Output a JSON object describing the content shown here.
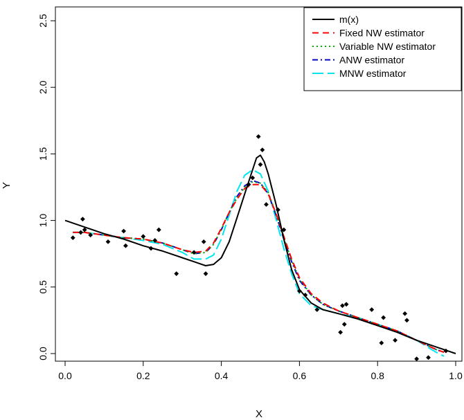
{
  "chart_data": {
    "type": "scatter",
    "xlabel": "X",
    "ylabel": "Y",
    "xlim": [
      0,
      1
    ],
    "ylim": [
      0,
      2.5
    ],
    "xticks": [
      "0.0",
      "0.2",
      "0.4",
      "0.6",
      "0.8",
      "1.0"
    ],
    "yticks": [
      "0.0",
      "0.5",
      "1.0",
      "1.5",
      "2.0",
      "2.5"
    ],
    "legend_position": "top-right",
    "points": {
      "name": "observations",
      "x": [
        0.02,
        0.04,
        0.045,
        0.05,
        0.065,
        0.11,
        0.15,
        0.155,
        0.2,
        0.22,
        0.23,
        0.24,
        0.285,
        0.33,
        0.355,
        0.36,
        0.47,
        0.48,
        0.495,
        0.5,
        0.505,
        0.515,
        0.545,
        0.56,
        0.6,
        0.615,
        0.645,
        0.705,
        0.71,
        0.715,
        0.72,
        0.785,
        0.81,
        0.815,
        0.845,
        0.87,
        0.875,
        0.9,
        0.93,
        0.975
      ],
      "y": [
        0.87,
        0.91,
        1.01,
        0.93,
        0.89,
        0.84,
        0.92,
        0.81,
        0.88,
        0.79,
        0.85,
        0.93,
        0.6,
        0.76,
        0.84,
        0.6,
        1.27,
        1.32,
        1.63,
        1.42,
        1.53,
        1.12,
        1.08,
        0.93,
        0.47,
        0.44,
        0.33,
        0.16,
        0.36,
        0.22,
        0.37,
        0.33,
        0.08,
        0.27,
        0.1,
        0.3,
        0.25,
        -0.04,
        -0.03,
        0.02
      ]
    },
    "series": [
      {
        "name": "m(x)",
        "color": "#000000",
        "dash": "solid",
        "x": [
          0.0,
          0.05,
          0.1,
          0.15,
          0.2,
          0.25,
          0.3,
          0.33,
          0.36,
          0.38,
          0.4,
          0.42,
          0.44,
          0.46,
          0.48,
          0.49,
          0.5,
          0.51,
          0.52,
          0.54,
          0.56,
          0.58,
          0.6,
          0.63,
          0.66,
          0.7,
          0.75,
          0.8,
          0.85,
          0.9,
          0.95,
          1.0
        ],
        "y": [
          1.0,
          0.95,
          0.9,
          0.86,
          0.81,
          0.77,
          0.72,
          0.69,
          0.66,
          0.67,
          0.72,
          0.84,
          1.02,
          1.2,
          1.38,
          1.47,
          1.49,
          1.44,
          1.35,
          1.12,
          0.86,
          0.63,
          0.48,
          0.38,
          0.33,
          0.3,
          0.26,
          0.21,
          0.16,
          0.1,
          0.05,
          0.0
        ]
      },
      {
        "name": "Fixed NW estimator",
        "color": "#ff0000",
        "dash": "dashed",
        "x": [
          0.02,
          0.05,
          0.1,
          0.15,
          0.2,
          0.25,
          0.3,
          0.33,
          0.36,
          0.38,
          0.4,
          0.42,
          0.44,
          0.46,
          0.48,
          0.5,
          0.52,
          0.54,
          0.56,
          0.58,
          0.6,
          0.63,
          0.66,
          0.7,
          0.75,
          0.8,
          0.85,
          0.9,
          0.95,
          0.97
        ],
        "y": [
          0.91,
          0.91,
          0.89,
          0.87,
          0.86,
          0.83,
          0.78,
          0.76,
          0.77,
          0.83,
          0.94,
          1.06,
          1.16,
          1.24,
          1.27,
          1.27,
          1.2,
          1.05,
          0.88,
          0.71,
          0.57,
          0.45,
          0.38,
          0.32,
          0.27,
          0.22,
          0.17,
          0.1,
          0.03,
          0.01
        ]
      },
      {
        "name": "Variable NW estimator",
        "color": "#00b000",
        "dash": "dotted",
        "x": [
          0.02,
          0.05,
          0.1,
          0.15,
          0.2,
          0.25,
          0.3,
          0.33,
          0.36,
          0.38,
          0.4,
          0.42,
          0.44,
          0.46,
          0.48,
          0.5,
          0.52,
          0.54,
          0.56,
          0.58,
          0.6,
          0.63,
          0.66,
          0.7,
          0.75,
          0.8,
          0.85,
          0.9,
          0.95,
          0.97
        ],
        "y": [
          0.91,
          0.91,
          0.89,
          0.87,
          0.86,
          0.83,
          0.78,
          0.75,
          0.76,
          0.82,
          0.93,
          1.06,
          1.17,
          1.25,
          1.29,
          1.28,
          1.21,
          1.05,
          0.87,
          0.7,
          0.56,
          0.44,
          0.37,
          0.32,
          0.27,
          0.22,
          0.17,
          0.1,
          0.03,
          0.01
        ]
      },
      {
        "name": "ANW estimator",
        "color": "#0000cd",
        "dash": "dashdot",
        "x": [
          0.02,
          0.05,
          0.1,
          0.15,
          0.2,
          0.25,
          0.3,
          0.33,
          0.36,
          0.38,
          0.4,
          0.42,
          0.44,
          0.46,
          0.48,
          0.5,
          0.52,
          0.54,
          0.56,
          0.58,
          0.6,
          0.63,
          0.66,
          0.7,
          0.75,
          0.8,
          0.85,
          0.9,
          0.95,
          0.97
        ],
        "y": [
          0.91,
          0.91,
          0.89,
          0.87,
          0.86,
          0.83,
          0.78,
          0.75,
          0.76,
          0.82,
          0.93,
          1.06,
          1.18,
          1.26,
          1.3,
          1.28,
          1.2,
          1.04,
          0.86,
          0.69,
          0.55,
          0.44,
          0.37,
          0.32,
          0.27,
          0.22,
          0.17,
          0.1,
          0.03,
          0.01
        ]
      },
      {
        "name": "MNW estimator",
        "color": "#00e5ee",
        "dash": "longdash",
        "x": [
          0.02,
          0.05,
          0.1,
          0.15,
          0.2,
          0.25,
          0.3,
          0.33,
          0.36,
          0.38,
          0.4,
          0.42,
          0.44,
          0.46,
          0.48,
          0.5,
          0.52,
          0.54,
          0.56,
          0.58,
          0.6,
          0.63,
          0.66,
          0.7,
          0.75,
          0.8,
          0.85,
          0.9,
          0.95,
          0.97
        ],
        "y": [
          0.91,
          0.91,
          0.89,
          0.87,
          0.85,
          0.82,
          0.76,
          0.71,
          0.71,
          0.74,
          0.86,
          1.04,
          1.22,
          1.34,
          1.38,
          1.35,
          1.22,
          1.01,
          0.79,
          0.6,
          0.45,
          0.36,
          0.33,
          0.3,
          0.27,
          0.22,
          0.17,
          0.1,
          0.01,
          -0.02
        ]
      }
    ]
  }
}
